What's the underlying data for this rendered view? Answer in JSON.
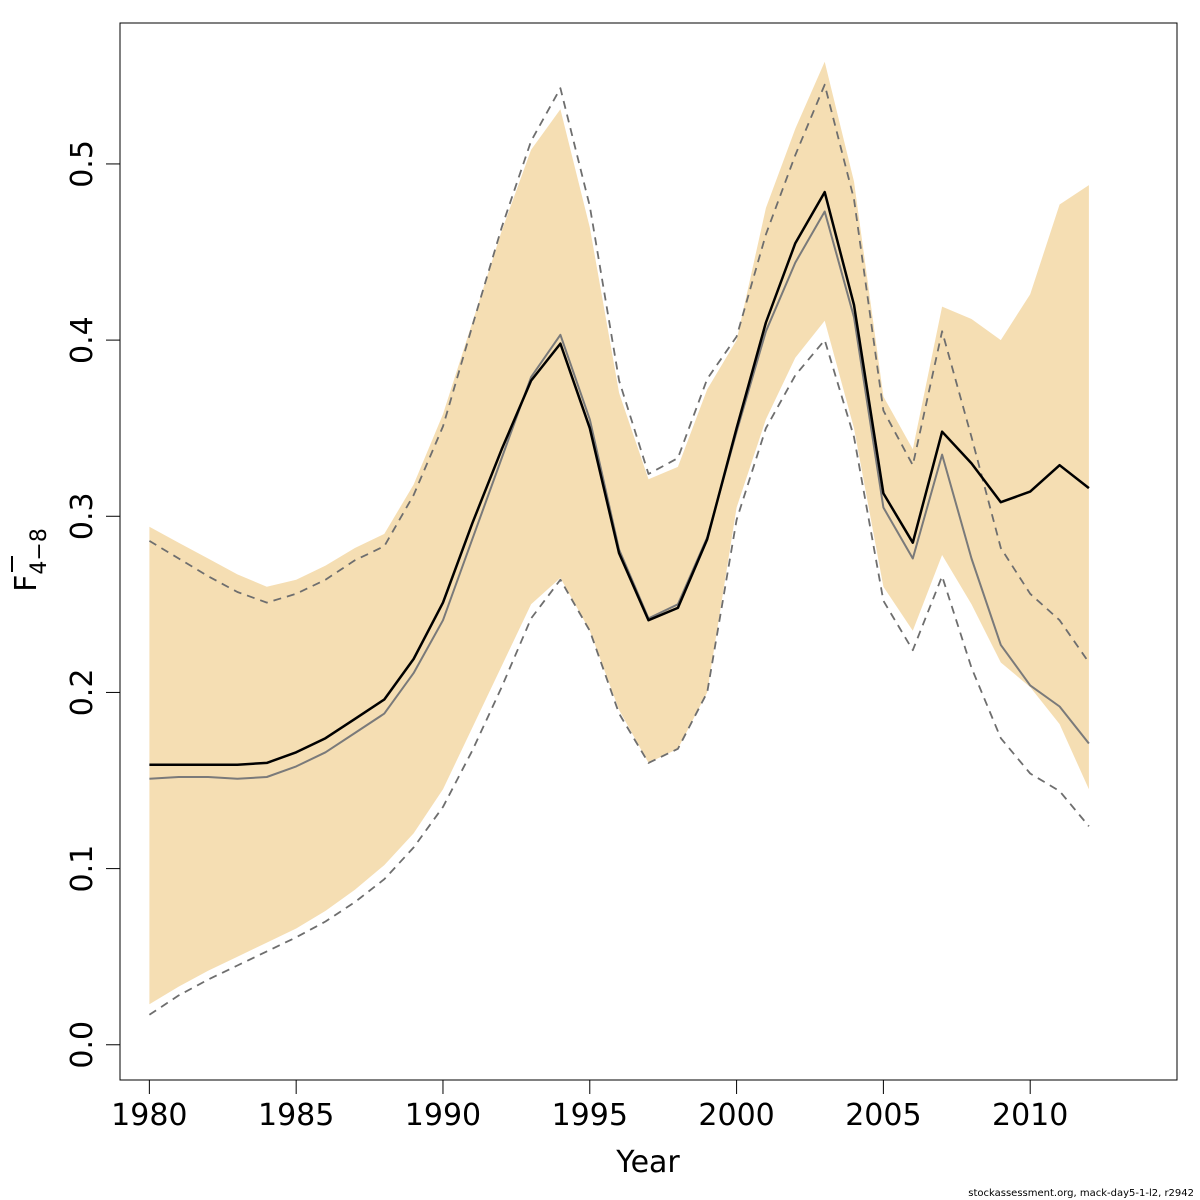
{
  "chart_data": {
    "type": "line",
    "xlabel": "Year",
    "ylabel": {
      "base": "F",
      "subscript": "4−8"
    },
    "xlim": [
      1979,
      2015
    ],
    "ylim": [
      -0.02,
      0.58
    ],
    "x_ticks": [
      1980,
      1985,
      1990,
      1995,
      2000,
      2005,
      2010
    ],
    "y_ticks": [
      0.0,
      0.1,
      0.2,
      0.3,
      0.4,
      0.5
    ],
    "y_tick_labels": [
      "0.0",
      "0.1",
      "0.2",
      "0.3",
      "0.4",
      "0.5"
    ],
    "grid": false,
    "x": [
      1980,
      1981,
      1982,
      1983,
      1984,
      1985,
      1986,
      1987,
      1988,
      1989,
      1990,
      1991,
      1992,
      1993,
      1994,
      1995,
      1996,
      1997,
      1998,
      1999,
      2000,
      2001,
      2002,
      2003,
      2004,
      2005,
      2006,
      2007,
      2008,
      2009,
      2010,
      2011,
      2012
    ],
    "band": {
      "color": "#f5deb3",
      "lower": [
        0.023,
        0.033,
        0.042,
        0.05,
        0.058,
        0.066,
        0.076,
        0.088,
        0.102,
        0.12,
        0.145,
        0.18,
        0.215,
        0.25,
        0.265,
        0.235,
        0.19,
        0.16,
        0.168,
        0.2,
        0.305,
        0.355,
        0.39,
        0.411,
        0.35,
        0.26,
        0.235,
        0.278,
        0.25,
        0.217,
        0.203,
        0.182,
        0.145
      ],
      "upper": [
        0.294,
        0.285,
        0.276,
        0.267,
        0.26,
        0.264,
        0.272,
        0.282,
        0.29,
        0.318,
        0.358,
        0.41,
        0.462,
        0.508,
        0.531,
        0.464,
        0.37,
        0.321,
        0.328,
        0.372,
        0.4,
        0.475,
        0.52,
        0.558,
        0.49,
        0.368,
        0.338,
        0.419,
        0.412,
        0.4,
        0.426,
        0.477,
        0.488
      ]
    },
    "series": [
      {
        "color": "#000000",
        "style": "solid",
        "width": 2.5,
        "values": [
          0.159,
          0.159,
          0.159,
          0.159,
          0.16,
          0.166,
          0.174,
          0.185,
          0.196,
          0.219,
          0.251,
          0.296,
          0.338,
          0.377,
          0.398,
          0.35,
          0.279,
          0.241,
          0.248,
          0.287,
          0.35,
          0.41,
          0.455,
          0.484,
          0.42,
          0.313,
          0.285,
          0.348,
          0.33,
          0.308,
          0.314,
          0.329,
          0.316
        ]
      },
      {
        "color": "#7a7a7a",
        "style": "solid",
        "width": 2,
        "values": [
          0.151,
          0.152,
          0.152,
          0.151,
          0.152,
          0.158,
          0.166,
          0.177,
          0.188,
          0.211,
          0.241,
          0.287,
          0.333,
          0.379,
          0.403,
          0.355,
          0.281,
          0.242,
          0.25,
          0.288,
          0.348,
          0.405,
          0.444,
          0.473,
          0.413,
          0.305,
          0.276,
          0.335,
          0.276,
          0.227,
          0.204,
          0.192,
          0.171
        ]
      },
      {
        "color": "#6e6e6e",
        "style": "dashed",
        "width": 1.8,
        "values": [
          0.017,
          0.028,
          0.037,
          0.045,
          0.053,
          0.061,
          0.07,
          0.081,
          0.094,
          0.112,
          0.135,
          0.167,
          0.203,
          0.242,
          0.264,
          0.235,
          0.188,
          0.16,
          0.168,
          0.2,
          0.298,
          0.35,
          0.38,
          0.4,
          0.345,
          0.252,
          0.224,
          0.266,
          0.214,
          0.174,
          0.154,
          0.144,
          0.124
        ]
      },
      {
        "color": "#6e6e6e",
        "style": "dashed",
        "width": 1.8,
        "values": [
          0.286,
          0.276,
          0.266,
          0.257,
          0.251,
          0.256,
          0.264,
          0.275,
          0.283,
          0.312,
          0.351,
          0.408,
          0.464,
          0.513,
          0.543,
          0.476,
          0.377,
          0.324,
          0.333,
          0.378,
          0.402,
          0.46,
          0.505,
          0.545,
          0.48,
          0.36,
          0.329,
          0.405,
          0.345,
          0.282,
          0.256,
          0.241,
          0.217
        ]
      }
    ]
  },
  "footer": "stockassessment.org, mack-day5-1-l2, r2942"
}
